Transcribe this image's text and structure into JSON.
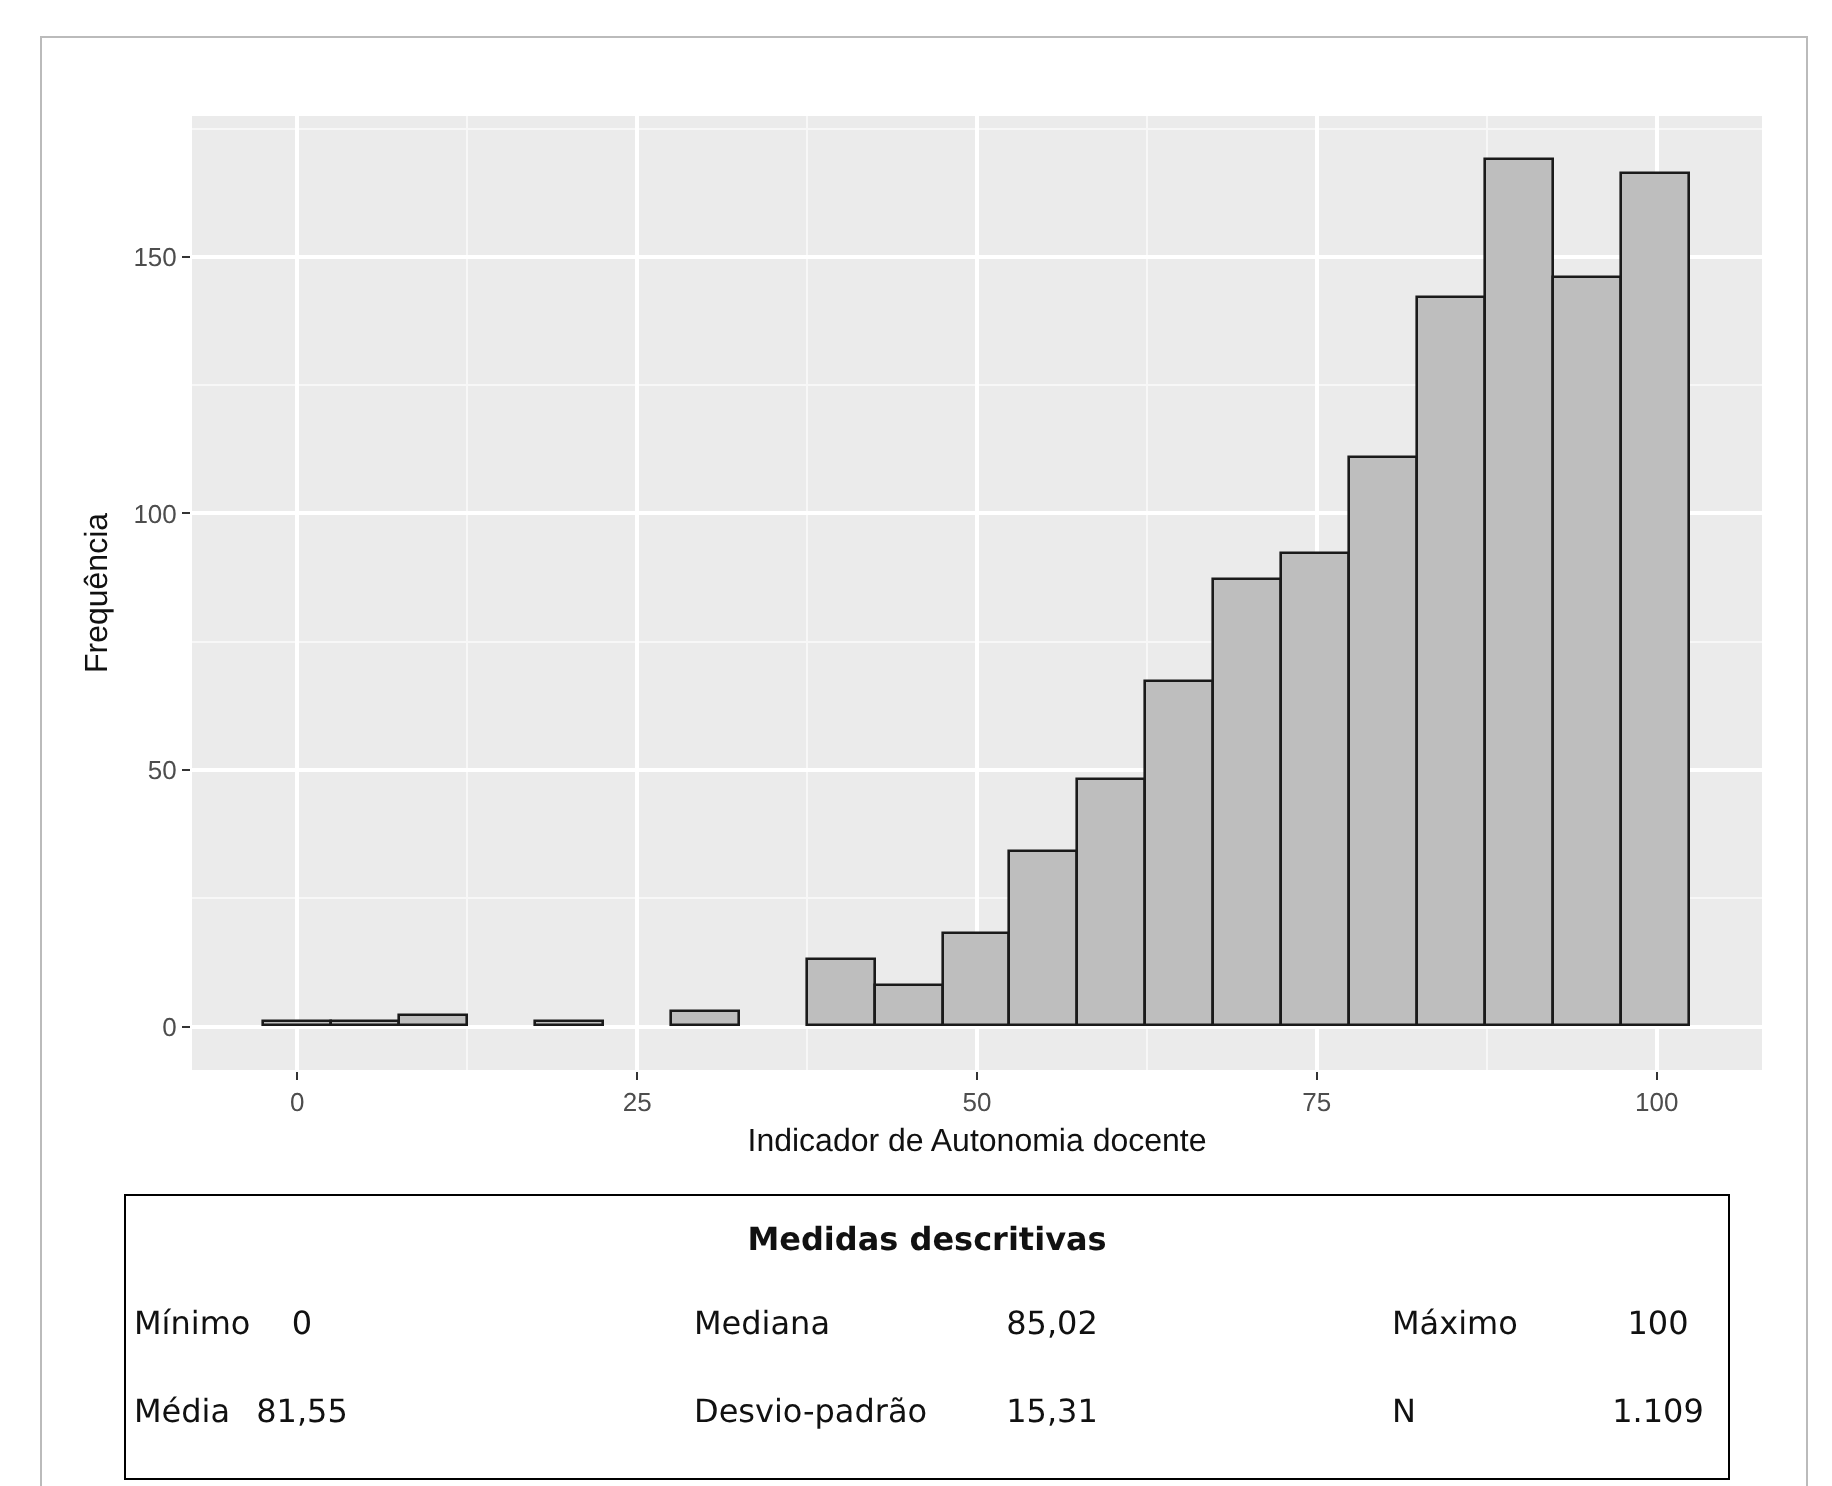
{
  "chart_data": {
    "type": "histogram",
    "xlabel": "Indicador de Autonomia docente",
    "ylabel": "Frequência",
    "bins": [
      -2.5,
      2.5,
      7.5,
      12.5,
      17.5,
      22.5,
      27.5,
      32.5,
      37.5,
      42.5,
      47.5,
      52.5,
      57.5,
      62.5,
      67.5,
      72.5,
      77.5,
      82.5,
      87.5,
      92.5,
      97.5,
      102.5
    ],
    "values": [
      1,
      1,
      2,
      0,
      1,
      0,
      3,
      0,
      13,
      8,
      18,
      34,
      48,
      67,
      87,
      92,
      111,
      142,
      169,
      146,
      166
    ],
    "color": "#bebebe",
    "xlim": [
      -7.75,
      107.75
    ],
    "xticks": [
      0,
      25,
      50,
      75,
      100
    ],
    "ylim": [
      -8.45,
      177.45
    ],
    "yticks": [
      0,
      50,
      100,
      150
    ],
    "grid": true,
    "annotations": [
      "Medidas descritivas",
      "Mínimo",
      "0",
      "Mediana",
      "85,02",
      "Máximo",
      "100",
      "Média",
      "81,55",
      "Desvio-padrão",
      "15,31",
      "N",
      "1.109"
    ]
  }
}
